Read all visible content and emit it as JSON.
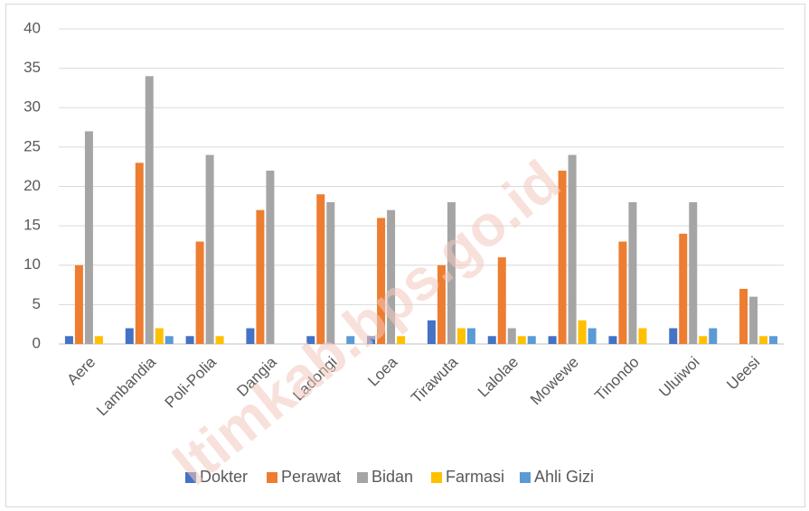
{
  "chart_data": {
    "type": "bar",
    "categories": [
      "Aere",
      "Lambandia",
      "Poli-Polia",
      "Dangia",
      "Ladongi",
      "Loea",
      "Tirawuta",
      "Lalolae",
      "Mowewe",
      "Tinondo",
      "Uluiwoi",
      "Ueesi"
    ],
    "series": [
      {
        "name": "Dokter",
        "color": "#4472C4",
        "values": [
          1,
          2,
          1,
          2,
          1,
          1,
          3,
          1,
          1,
          1,
          2,
          0
        ]
      },
      {
        "name": "Perawat",
        "color": "#ED7D31",
        "values": [
          10,
          23,
          13,
          17,
          19,
          16,
          10,
          11,
          22,
          13,
          14,
          7
        ]
      },
      {
        "name": "Bidan",
        "color": "#A5A5A5",
        "values": [
          27,
          34,
          24,
          22,
          18,
          17,
          18,
          2,
          24,
          18,
          18,
          6
        ]
      },
      {
        "name": "Farmasi",
        "color": "#FFC000",
        "values": [
          1,
          2,
          1,
          0,
          0,
          1,
          2,
          1,
          3,
          2,
          1,
          1
        ]
      },
      {
        "name": "Ahli Gizi",
        "color": "#5B9BD5",
        "values": [
          0,
          1,
          0,
          0,
          1,
          0,
          2,
          1,
          2,
          0,
          2,
          1
        ]
      }
    ],
    "yticks": [
      0,
      5,
      10,
      15,
      20,
      25,
      30,
      35,
      40
    ],
    "ylim": [
      0,
      40
    ],
    "grid": true,
    "legend": "bottom"
  },
  "watermark": "ltimkab.bps.go.id"
}
